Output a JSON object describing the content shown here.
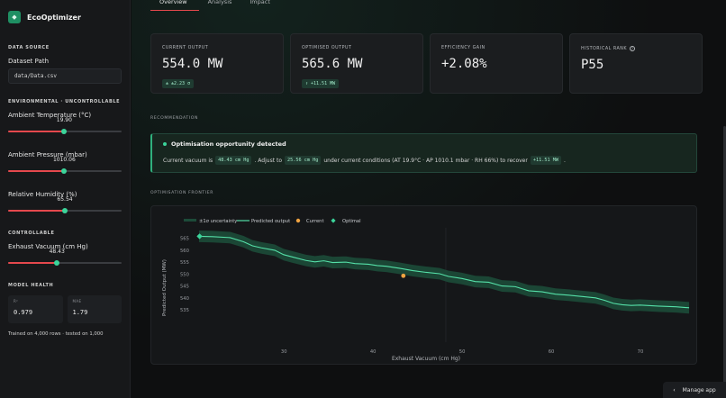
{
  "app": {
    "name": "EcoOptimizer",
    "logo_icon": "diamond-icon"
  },
  "sidebar": {
    "data_source_title": "DATA SOURCE",
    "dataset_label": "Dataset Path",
    "dataset_value": "data/Data.csv",
    "environmental_title": "ENVIRONMENTAL · UNCONTROLLABLE",
    "sliders_env": [
      {
        "label": "Ambient Temperature (°C)",
        "value": "19.90",
        "fraction": 0.495
      },
      {
        "label": "Ambient Pressure (mbar)",
        "value": "1010.06",
        "fraction": 0.495
      },
      {
        "label": "Relative Humidity (%)",
        "value": "65.54",
        "fraction": 0.5
      }
    ],
    "controllable_title": "CONTROLLABLE",
    "slider_ctrl": {
      "label": "Exhaust Vacuum (cm Hg)",
      "value": "48.43",
      "fraction": 0.43
    },
    "model_health_title": "MODEL HEALTH",
    "health": [
      {
        "label": "R²",
        "value": "0.979"
      },
      {
        "label": "MAE",
        "value": "1.79"
      }
    ],
    "health_note": "Trained on 4,000 rows · tested on 1,000"
  },
  "tabs": [
    "Overview",
    "Analysis",
    "Impact"
  ],
  "kpis": [
    {
      "label": "CURRENT OUTPUT",
      "value": "554.0 MW",
      "badge": "± ±2.23 σ"
    },
    {
      "label": "OPTIMISED OUTPUT",
      "value": "565.6 MW",
      "badge": "↑ +11.51 MW"
    },
    {
      "label": "EFFICIENCY GAIN",
      "value": "+2.08%",
      "badge": ""
    },
    {
      "label": "HISTORICAL RANK",
      "value": "P55",
      "badge": ""
    }
  ],
  "recommendation": {
    "section": "RECOMMENDATION",
    "title": "Optimisation opportunity detected",
    "text1": "Current vacuum is",
    "chip1": "48.43 cm Hg",
    "text2": ". Adjust to",
    "chip2": "25.56 cm Hg",
    "text3": "under current conditions (AT 19.9°C · AP 1010.1 mbar · RH 66%) to recover",
    "chip3": "+11.51 MW",
    "text4": "."
  },
  "frontier": {
    "section": "OPTIMISATION FRONTIER"
  },
  "manage_app": "Manage app",
  "colors": {
    "accent": "#3bd49a",
    "current": "#f0a341",
    "danger": "#e5484d"
  },
  "chart_data": {
    "type": "line",
    "legend": [
      "±1σ uncertainty",
      "Predicted output",
      "Current",
      "Optimal"
    ],
    "xlabel": "Exhaust Vacuum (cm Hg)",
    "ylabel": "Predicted Output (MW)",
    "x_ticks": [
      "30",
      "40",
      "50",
      "60",
      "70"
    ],
    "y_ticks": [
      "565",
      "560",
      "555",
      "550",
      "545",
      "540",
      "535"
    ],
    "xlim": [
      25.0,
      81.0
    ],
    "series": [
      {
        "name": "Predicted output",
        "x": [
          25.5,
          27,
          29,
          30.5,
          31.5,
          32.5,
          34,
          35,
          36,
          37.5,
          38.5,
          39.5,
          40.5,
          42,
          43,
          44.5,
          45.5,
          46.5,
          48,
          49.5,
          51,
          52.5,
          53.5,
          55,
          56.5,
          58,
          59.5,
          61,
          62.5,
          64,
          65.5,
          67,
          68.5,
          70,
          71,
          72,
          73,
          74,
          75,
          77,
          79,
          80.5
        ],
        "y": [
          565.6,
          565.5,
          565.2,
          564,
          562.8,
          562.2,
          561.5,
          560.2,
          559.5,
          558.5,
          558.1,
          558.4,
          557.9,
          558.0,
          557.6,
          557.4,
          557.0,
          556.8,
          556.2,
          555.5,
          555.0,
          554.6,
          553.8,
          553.2,
          552.3,
          552.1,
          551.0,
          550.8,
          549.6,
          549.3,
          548.6,
          548.3,
          547.9,
          547.5,
          546.8,
          545.9,
          545.5,
          545.3,
          545.4,
          545.1,
          544.9,
          544.6
        ],
        "band": 1.7
      }
    ],
    "current": {
      "x": 48.43,
      "y": 554.0
    },
    "optimal": {
      "x": 25.56,
      "y": 565.6
    }
  }
}
